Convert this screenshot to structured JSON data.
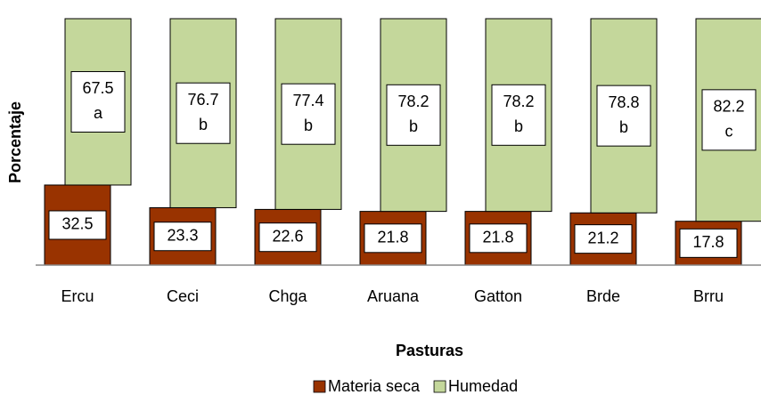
{
  "chart_data": {
    "type": "stacked-bar",
    "xlabel": "Pasturas",
    "ylabel": "Porcentaje",
    "categories": [
      "Ercu",
      "Ceci",
      "Chga",
      "Aruana",
      "Gatton",
      "Brde",
      "Brru"
    ],
    "ylim": [
      0,
      100
    ],
    "series": [
      {
        "name": "Materia seca",
        "color": "#993300",
        "values": [
          32.5,
          23.3,
          22.6,
          21.8,
          21.8,
          21.2,
          17.8
        ]
      },
      {
        "name": "Humedad",
        "color": "#c4d79b",
        "values": [
          67.5,
          76.7,
          77.4,
          78.2,
          78.2,
          78.8,
          82.2
        ],
        "letters": [
          "a",
          "b",
          "b",
          "b",
          "b",
          "b",
          "c"
        ]
      }
    ],
    "legend": "bottom"
  }
}
